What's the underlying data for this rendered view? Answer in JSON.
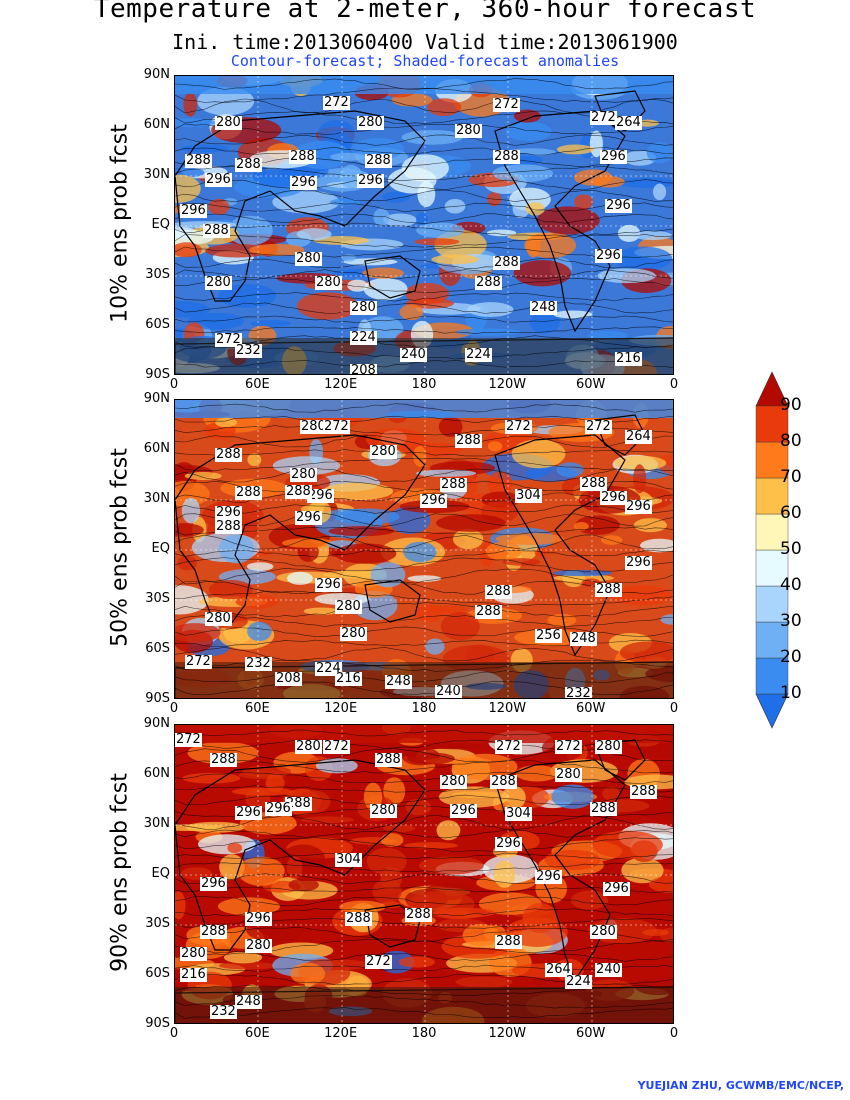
{
  "header": {
    "title": "Temperature at 2-meter, 360-hour forecast",
    "subtitle": "Ini. time:2013060400    Valid time:2013061900",
    "subtitle2": "Contour-forecast; Shaded-forecast anomalies"
  },
  "axes": {
    "lat_labels": [
      "90N",
      "60N",
      "30N",
      "EQ",
      "30S",
      "60S",
      "90S"
    ],
    "lon_labels": [
      "0",
      "60E",
      "120E",
      "180",
      "120W",
      "60W",
      "0"
    ]
  },
  "panels": [
    {
      "label": "10% ens prob fcst",
      "contour_labels": [
        "272",
        "280",
        "272",
        "272",
        "280",
        "280",
        "264",
        "288",
        "288",
        "288",
        "288",
        "296",
        "296",
        "296",
        "296",
        "288",
        "296",
        "296",
        "288",
        "280",
        "288",
        "296",
        "280",
        "280",
        "288",
        "280",
        "248",
        "272",
        "224",
        "232",
        "240",
        "224",
        "216",
        "208"
      ]
    },
    {
      "label": "50% ens prob fcst",
      "contour_labels": [
        "280",
        "272",
        "272",
        "272",
        "264",
        "288",
        "280",
        "288",
        "280",
        "288",
        "288",
        "296",
        "288",
        "288",
        "296",
        "304",
        "296",
        "296",
        "296",
        "296",
        "288",
        "296",
        "296",
        "288",
        "288",
        "280",
        "288",
        "280",
        "280",
        "256",
        "248",
        "272",
        "232",
        "224",
        "208",
        "216",
        "248",
        "240",
        "232"
      ]
    },
    {
      "label": "90% ens prob fcst",
      "contour_labels": [
        "272",
        "280",
        "272",
        "272",
        "280",
        "272",
        "288",
        "288",
        "280",
        "288",
        "280",
        "288",
        "296",
        "296",
        "296",
        "288",
        "280",
        "304",
        "288",
        "304",
        "296",
        "296",
        "296",
        "296",
        "296",
        "288",
        "288",
        "288",
        "288",
        "280",
        "280",
        "280",
        "272",
        "264",
        "240",
        "216",
        "224",
        "248",
        "232"
      ]
    }
  ],
  "colorbar": {
    "ticks": [
      "90",
      "80",
      "70",
      "60",
      "50",
      "40",
      "30",
      "20",
      "10"
    ],
    "colors": [
      "#1f6fe8",
      "#3a8cf0",
      "#6fb0f5",
      "#a9d4fb",
      "#e6fbff",
      "#fff7b8",
      "#ffc04a",
      "#ff7a1a",
      "#e83a0a",
      "#b30a00"
    ]
  },
  "footer": {
    "credit": "YUEJIAN ZHU, GCWMB/EMC/NCEP,"
  }
}
